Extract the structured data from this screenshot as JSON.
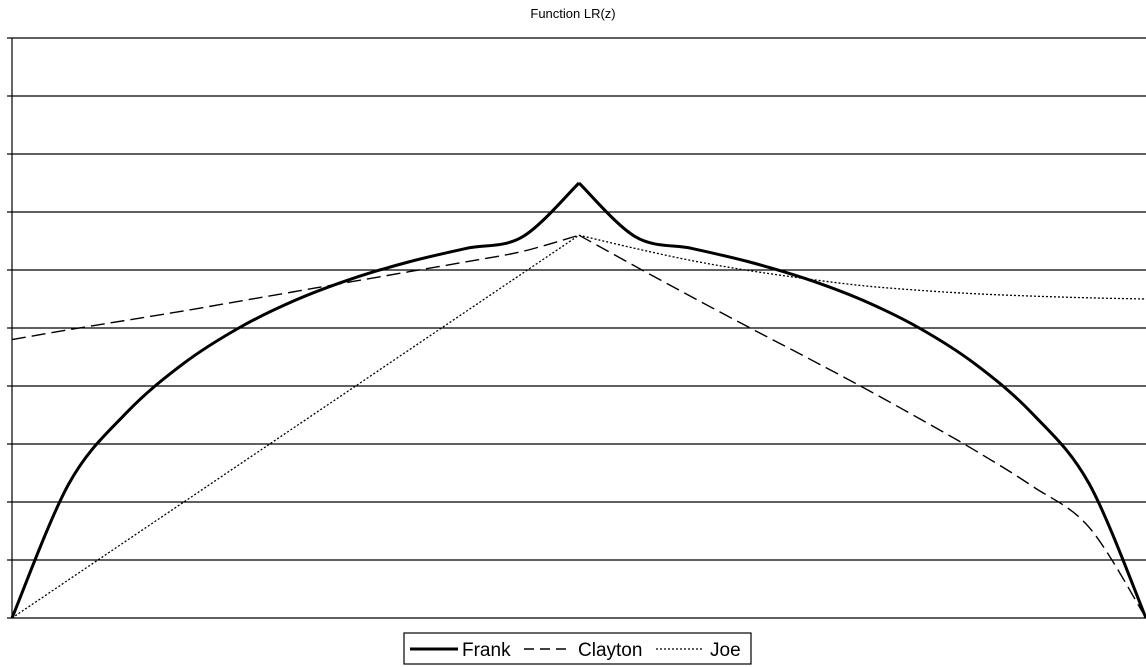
{
  "chart_data": {
    "type": "line",
    "title": "Function LR(z)",
    "xlabel": "",
    "ylabel": "",
    "xlim": [
      0,
      1
    ],
    "ylim": [
      0,
      1
    ],
    "y_gridline_count": 10,
    "grid": true,
    "legend_position": "bottom-center",
    "colors": {
      "line": "#000000",
      "grid": "#000000",
      "background": "#ffffff"
    },
    "x": [
      0,
      0.05,
      0.1,
      0.15,
      0.2,
      0.25,
      0.3,
      0.35,
      0.4,
      0.45,
      0.5,
      0.55,
      0.6,
      0.65,
      0.7,
      0.75,
      0.8,
      0.85,
      0.9,
      0.95,
      1.0
    ],
    "series": [
      {
        "name": "Frank",
        "style": "solid-thick",
        "values": [
          0,
          0.231,
          0.352,
          0.437,
          0.5,
          0.548,
          0.585,
          0.614,
          0.637,
          0.657,
          0.75,
          0.657,
          0.637,
          0.614,
          0.585,
          0.548,
          0.5,
          0.437,
          0.352,
          0.231,
          0
        ]
      },
      {
        "name": "Clayton",
        "style": "dashed",
        "values": [
          0.48,
          0.497,
          0.513,
          0.529,
          0.546,
          0.563,
          0.58,
          0.597,
          0.614,
          0.632,
          0.66,
          0.606,
          0.553,
          0.501,
          0.45,
          0.398,
          0.344,
          0.288,
          0.227,
          0.156,
          0
        ]
      },
      {
        "name": "Joe",
        "style": "dotted",
        "values": [
          0,
          0.066,
          0.132,
          0.198,
          0.264,
          0.33,
          0.396,
          0.462,
          0.528,
          0.594,
          0.66,
          0.637,
          0.616,
          0.599,
          0.585,
          0.573,
          0.565,
          0.559,
          0.555,
          0.552,
          0.55
        ]
      }
    ]
  }
}
